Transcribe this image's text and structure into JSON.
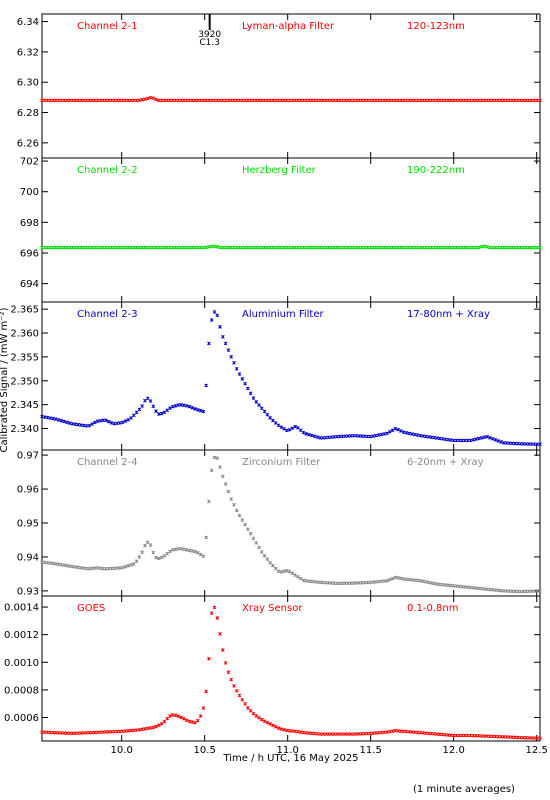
{
  "figure": {
    "ylabel": "Calibrated Signal / (mW m⁻²)",
    "xlabel": "Time / h UTC, 16 May 2025",
    "footnote": "(1 minute averages)"
  },
  "flare_marker": {
    "time": 10.53,
    "label_top": "3920",
    "label_bottom": "C1.3"
  },
  "chart_data": [
    {
      "type": "scatter",
      "channel": "Channel 2-1",
      "filter": "Lyman-alpha Filter",
      "band": "120-123nm",
      "color": "#ff0000",
      "xlim": [
        9.52,
        12.52
      ],
      "ylim": [
        6.25,
        6.345
      ],
      "yticks": [
        "6.26",
        "6.28",
        "6.30",
        "6.32",
        "6.34"
      ],
      "ytick_values": [
        6.26,
        6.28,
        6.3,
        6.32,
        6.34
      ],
      "x": [
        9.52,
        10.1,
        10.15,
        10.18,
        10.22,
        10.3,
        12.52
      ],
      "y": [
        6.288,
        6.288,
        6.289,
        6.29,
        6.288,
        6.288,
        6.288
      ]
    },
    {
      "type": "scatter",
      "channel": "Channel 2-2",
      "filter": "Herzberg Filter",
      "band": "190-222nm",
      "color": "#00dd00",
      "xlim": [
        9.52,
        12.52
      ],
      "ylim": [
        692.8,
        702.2
      ],
      "yticks": [
        "694",
        "696",
        "698",
        "700",
        "702"
      ],
      "ytick_values": [
        694,
        696,
        698,
        700,
        702
      ],
      "x": [
        9.52,
        10.5,
        10.55,
        10.6,
        12.15,
        12.18,
        12.22,
        12.52
      ],
      "y": [
        696.35,
        696.35,
        696.45,
        696.35,
        696.35,
        696.45,
        696.35,
        696.35
      ]
    },
    {
      "type": "scatter",
      "channel": "Channel 2-3",
      "filter": "Aluminium Filter",
      "band": "17-80nm + Xray",
      "color": "#0000cc",
      "xlim": [
        9.52,
        12.52
      ],
      "ylim": [
        2.3355,
        2.3665
      ],
      "yticks": [
        "2.340",
        "2.345",
        "2.350",
        "2.355",
        "2.360",
        "2.365"
      ],
      "ytick_values": [
        2.34,
        2.345,
        2.35,
        2.355,
        2.36,
        2.365
      ],
      "x": [
        9.52,
        9.6,
        9.7,
        9.8,
        9.85,
        9.9,
        9.95,
        10.0,
        10.05,
        10.08,
        10.12,
        10.15,
        10.17,
        10.2,
        10.22,
        10.25,
        10.3,
        10.35,
        10.4,
        10.45,
        10.5,
        10.52,
        10.54,
        10.56,
        10.58,
        10.6,
        10.63,
        10.66,
        10.7,
        10.75,
        10.8,
        10.85,
        10.9,
        10.95,
        11.0,
        11.05,
        11.1,
        11.2,
        11.3,
        11.4,
        11.5,
        11.6,
        11.65,
        11.7,
        11.8,
        11.9,
        12.0,
        12.1,
        12.2,
        12.3,
        12.4,
        12.52
      ],
      "y": [
        2.3425,
        2.342,
        2.341,
        2.3405,
        2.3415,
        2.3418,
        2.341,
        2.3412,
        2.342,
        2.343,
        2.3445,
        2.3465,
        2.346,
        2.344,
        2.343,
        2.3432,
        2.3445,
        2.345,
        2.3447,
        2.344,
        2.3435,
        2.356,
        2.3625,
        2.3645,
        2.3635,
        2.36,
        2.3575,
        2.355,
        2.352,
        2.349,
        2.346,
        2.344,
        2.342,
        2.3405,
        2.3395,
        2.3405,
        2.339,
        2.338,
        2.3383,
        2.3385,
        2.3383,
        2.339,
        2.34,
        2.3392,
        2.3385,
        2.338,
        2.3375,
        2.3375,
        2.3383,
        2.337,
        2.3368,
        2.3367
      ]
    },
    {
      "type": "scatter",
      "channel": "Channel 2-4",
      "filter": "Zirconium Filter",
      "band": "6-20nm + Xray",
      "color": "#888888",
      "xlim": [
        9.52,
        12.52
      ],
      "ylim": [
        0.9285,
        0.9715
      ],
      "yticks": [
        "0.93",
        "0.94",
        "0.95",
        "0.96",
        "0.97"
      ],
      "ytick_values": [
        0.93,
        0.94,
        0.95,
        0.96,
        0.97
      ],
      "x": [
        9.52,
        9.6,
        9.7,
        9.8,
        9.85,
        9.9,
        10.0,
        10.08,
        10.12,
        10.15,
        10.17,
        10.2,
        10.22,
        10.25,
        10.3,
        10.35,
        10.4,
        10.45,
        10.5,
        10.52,
        10.54,
        10.56,
        10.58,
        10.6,
        10.63,
        10.66,
        10.7,
        10.75,
        10.8,
        10.85,
        10.9,
        10.95,
        11.0,
        11.05,
        11.1,
        11.2,
        11.3,
        11.4,
        11.5,
        11.6,
        11.65,
        11.7,
        11.8,
        11.9,
        12.0,
        12.1,
        12.2,
        12.3,
        12.4,
        12.52
      ],
      "y": [
        0.9385,
        0.938,
        0.9372,
        0.9365,
        0.9368,
        0.9365,
        0.9368,
        0.938,
        0.941,
        0.9445,
        0.944,
        0.94,
        0.9395,
        0.94,
        0.942,
        0.9425,
        0.942,
        0.9415,
        0.94,
        0.953,
        0.965,
        0.9695,
        0.969,
        0.965,
        0.961,
        0.957,
        0.953,
        0.949,
        0.945,
        0.941,
        0.938,
        0.9355,
        0.936,
        0.9345,
        0.933,
        0.9325,
        0.9322,
        0.9323,
        0.9325,
        0.933,
        0.934,
        0.9335,
        0.933,
        0.932,
        0.9315,
        0.931,
        0.9305,
        0.93,
        0.9298,
        0.93
      ]
    },
    {
      "type": "scatter",
      "channel": "GOES",
      "filter": "Xray Sensor",
      "band": "0.1-0.8nm",
      "color": "#ff0000",
      "xlim": [
        9.52,
        12.52
      ],
      "ylim": [
        0.00043,
        0.00148
      ],
      "yticks": [
        "0.0006",
        "0.0008",
        "0.0010",
        "0.0012",
        "0.0014"
      ],
      "ytick_values": [
        0.0006,
        0.0008,
        0.001,
        0.0012,
        0.0014
      ],
      "x": [
        9.52,
        9.6,
        9.7,
        9.8,
        9.9,
        10.0,
        10.05,
        10.1,
        10.15,
        10.2,
        10.25,
        10.28,
        10.3,
        10.33,
        10.36,
        10.4,
        10.45,
        10.48,
        10.5,
        10.52,
        10.54,
        10.56,
        10.58,
        10.6,
        10.62,
        10.65,
        10.68,
        10.72,
        10.76,
        10.8,
        10.85,
        10.9,
        10.95,
        11.0,
        11.05,
        11.1,
        11.2,
        11.3,
        11.4,
        11.5,
        11.6,
        11.65,
        11.7,
        11.8,
        11.9,
        12.0,
        12.1,
        12.2,
        12.3,
        12.4,
        12.52
      ],
      "y": [
        0.000495,
        0.00049,
        0.000485,
        0.00049,
        0.000495,
        0.0005,
        0.000505,
        0.00051,
        0.00052,
        0.00053,
        0.00056,
        0.0006,
        0.00062,
        0.000615,
        0.0006,
        0.000575,
        0.00056,
        0.00062,
        0.0007,
        0.0009,
        0.00135,
        0.0014,
        0.0013,
        0.00115,
        0.00102,
        0.0009,
        0.00082,
        0.00074,
        0.00067,
        0.00062,
        0.00058,
        0.00055,
        0.00052,
        0.000505,
        0.0005,
        0.00049,
        0.00048,
        0.00048,
        0.00048,
        0.000485,
        0.000495,
        0.000505,
        0.0005,
        0.00049,
        0.00048,
        0.00047,
        0.00047,
        0.000465,
        0.00046,
        0.000455,
        0.00045
      ]
    }
  ],
  "xaxis": {
    "ticks": [
      "10.0",
      "10.5",
      "11.0",
      "11.5",
      "12.0",
      "12.5"
    ],
    "tick_values": [
      10.0,
      10.5,
      11.0,
      11.5,
      12.0,
      12.5
    ]
  }
}
